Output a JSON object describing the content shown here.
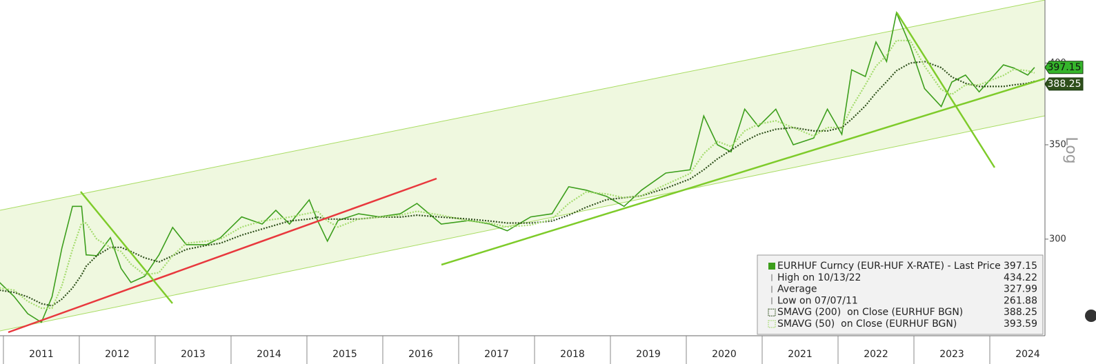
{
  "chart_data": {
    "type": "line",
    "x": [
      2010.95,
      2011.14,
      2011.32,
      2011.5,
      2011.64,
      2011.77,
      2011.91,
      2012.03,
      2012.09,
      2012.23,
      2012.41,
      2012.55,
      2012.68,
      2012.86,
      2013.05,
      2013.23,
      2013.41,
      2013.68,
      2013.86,
      2014.14,
      2014.41,
      2014.59,
      2014.77,
      2015.03,
      2015.14,
      2015.27,
      2015.41,
      2015.68,
      2015.95,
      2016.23,
      2016.45,
      2016.77,
      2017.14,
      2017.41,
      2017.64,
      2017.95,
      2018.23,
      2018.45,
      2018.68,
      2018.95,
      2019.18,
      2019.41,
      2019.73,
      2020.05,
      2020.23,
      2020.41,
      2020.59,
      2020.77,
      2020.95,
      2021.18,
      2021.41,
      2021.68,
      2021.86,
      2022.05,
      2022.18,
      2022.36,
      2022.5,
      2022.64,
      2022.77,
      2022.95,
      2023.14,
      2023.36,
      2023.5,
      2023.68,
      2023.86,
      2024.18,
      2024.32,
      2024.5,
      2024.59
    ],
    "series": [
      {
        "name": "EURHUF Curncy (EUR-HUF X-RATE) - Last Price",
        "color": "#3c9e1c",
        "style": "solid",
        "values": [
          279.5,
          273.2,
          265.6,
          261.88,
          273,
          295.6,
          316.5,
          316.5,
          292.4,
          292,
          300.7,
          286,
          279.5,
          282.3,
          292.4,
          305.8,
          297.3,
          297.3,
          300.7,
          311.1,
          307.5,
          314.5,
          307.5,
          319.9,
          309.3,
          299,
          309.3,
          312.7,
          311.1,
          312.7,
          318,
          307.5,
          309.3,
          307.5,
          304.1,
          311.1,
          312.7,
          326.8,
          325,
          321.7,
          316.5,
          325,
          334.2,
          336,
          366.9,
          350,
          346,
          371,
          360.6,
          371,
          350,
          353.9,
          371,
          356,
          395.6,
          391.3,
          414,
          401,
          434.22,
          411.6,
          383.7,
          372.6,
          387.8,
          392.2,
          381.6,
          398.8,
          396.7,
          392.2,
          397.15
        ]
      },
      {
        "name": "SMAVG (200)  on Close (EURHUF BGN)",
        "color": "#2e4f1b",
        "style": "dotted",
        "values": [
          276,
          275,
          273,
          270,
          269,
          272,
          277,
          283,
          287,
          292,
          296,
          296,
          294,
          291,
          289,
          292,
          295,
          297,
          298,
          302,
          305,
          307,
          309,
          310,
          311,
          310,
          310,
          310,
          311,
          311,
          312,
          311,
          310,
          309,
          308,
          308,
          309,
          312,
          316,
          320,
          321,
          322,
          326,
          331,
          336,
          342,
          347,
          352,
          356,
          359,
          360,
          358,
          358,
          360,
          365,
          373,
          381,
          388,
          395,
          400,
          401,
          397,
          391,
          387,
          385,
          385,
          386,
          387,
          388.25
        ]
      },
      {
        "name": "SMAVG (50)  on Close (EURHUF BGN)",
        "color": "#a3db6c",
        "style": "dotted",
        "values": [
          277,
          276,
          271,
          268,
          268,
          278,
          295,
          308,
          308,
          300,
          296,
          294,
          288,
          283,
          284,
          292,
          298,
          299,
          300,
          306,
          309,
          310,
          311,
          313,
          314,
          309,
          306,
          310,
          311,
          312,
          314,
          312,
          309,
          308,
          306,
          307,
          310,
          318,
          324,
          323,
          321,
          322,
          328,
          334,
          345,
          352,
          349,
          358,
          362,
          364,
          360,
          355,
          360,
          360,
          372,
          386,
          398,
          405,
          415,
          415,
          398,
          383,
          380,
          386,
          386,
          392,
          396,
          395,
          393.59
        ]
      }
    ],
    "legend_stats": [
      {
        "label": "High on 10/13/22",
        "value": 434.22
      },
      {
        "label": "Average",
        "value": 327.99
      },
      {
        "label": "Low on 07/07/11",
        "value": 261.88
      }
    ],
    "xlim": [
      2010.955,
      2024.727
    ],
    "xticks": [
      2011,
      2012,
      2013,
      2014,
      2015,
      2016,
      2017,
      2018,
      2019,
      2020,
      2021,
      2022,
      2023,
      2024
    ],
    "ylim": [
      256.2,
      443.4
    ],
    "yticks": [
      300,
      350,
      400
    ],
    "log_scale": true,
    "scale_label": "Log"
  }
}
